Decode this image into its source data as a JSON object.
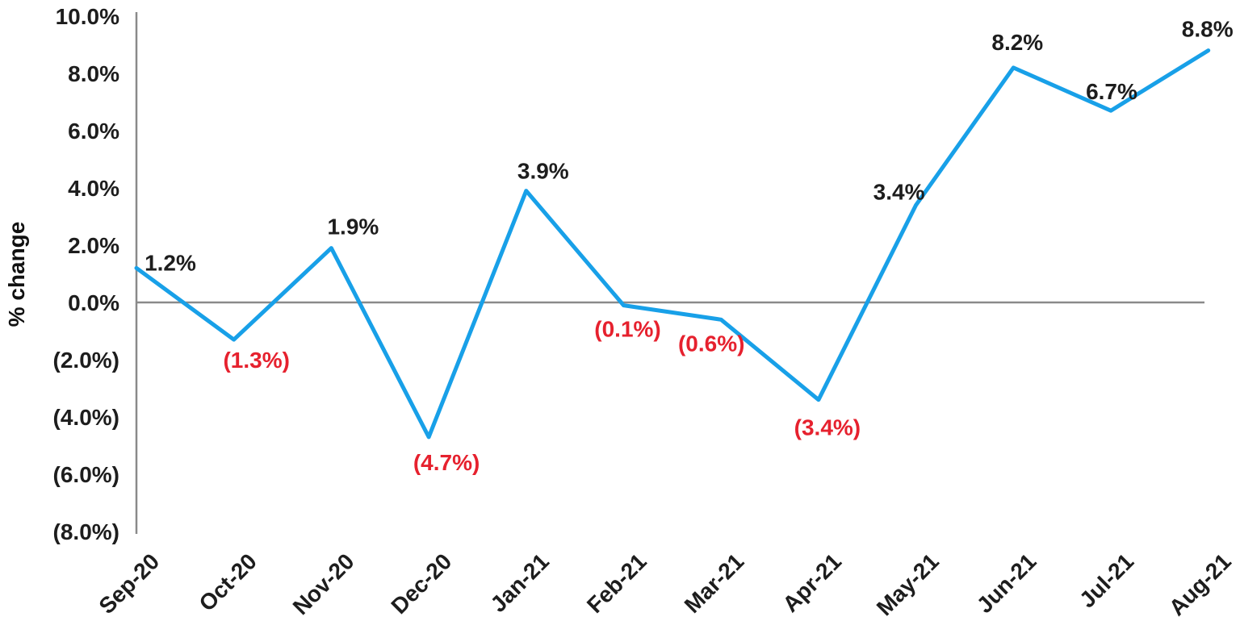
{
  "chart_data": {
    "type": "line",
    "title": "",
    "xlabel": "",
    "ylabel": "% change",
    "categories": [
      "Sep-20",
      "Oct-20",
      "Nov-20",
      "Dec-20",
      "Jan-21",
      "Feb-21",
      "Mar-21",
      "Apr-21",
      "May-21",
      "Jun-21",
      "Jul-21",
      "Aug-21"
    ],
    "series": [
      {
        "name": "% change",
        "values": [
          1.2,
          -1.3,
          1.9,
          -4.7,
          3.9,
          -0.1,
          -0.6,
          -3.4,
          3.4,
          8.2,
          6.7,
          8.8
        ]
      }
    ],
    "data_labels": [
      "1.2%",
      "(1.3%)",
      "1.9%",
      "(4.7%)",
      "3.9%",
      "(0.1%)",
      "(0.6%)",
      "(3.4%)",
      "3.4%",
      "8.2%",
      "6.7%",
      "8.8%"
    ],
    "y_ticks": [
      {
        "value": 10,
        "label": "10.0%"
      },
      {
        "value": 8,
        "label": "8.0%"
      },
      {
        "value": 6,
        "label": "6.0%"
      },
      {
        "value": 4,
        "label": "4.0%"
      },
      {
        "value": 2,
        "label": "2.0%"
      },
      {
        "value": 0,
        "label": "0.0%"
      },
      {
        "value": -2,
        "label": "(2.0%)"
      },
      {
        "value": -4,
        "label": "(4.0%)"
      },
      {
        "value": -6,
        "label": "(6.0%)"
      },
      {
        "value": -8,
        "label": "(8.0%)"
      }
    ],
    "ylim": [
      -8,
      10
    ],
    "grid": "zero-line-only",
    "legend": "none",
    "colors": {
      "line": "#18A0E8",
      "positive_label": "#1d1d1d",
      "negative_label": "#E6212E",
      "axis": "#8a8a8a"
    }
  }
}
